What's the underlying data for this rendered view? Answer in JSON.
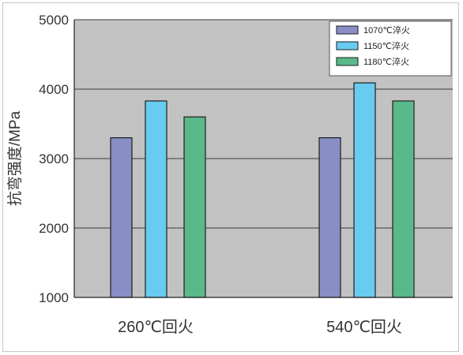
{
  "colors": {
    "plot_bg": "#c2c2c2",
    "gridline": "#3a3a3a",
    "series": [
      "#8a8ec6",
      "#67ccef",
      "#59b98a"
    ]
  },
  "chart_data": {
    "type": "bar",
    "title": "",
    "xlabel": "",
    "ylabel": "抗弯强度/MPa",
    "categories": [
      "260℃回火",
      "540℃回火"
    ],
    "series": [
      {
        "name": "1070℃淬火",
        "values": [
          3300,
          3300
        ]
      },
      {
        "name": "1150℃淬火",
        "values": [
          3830,
          4090
        ]
      },
      {
        "name": "1180℃淬火",
        "values": [
          3600,
          3830
        ]
      }
    ],
    "ylim": [
      1000,
      5000
    ],
    "yticks": [
      1000,
      2000,
      3000,
      4000,
      5000
    ],
    "grid": true,
    "legend_position": "top-right"
  }
}
